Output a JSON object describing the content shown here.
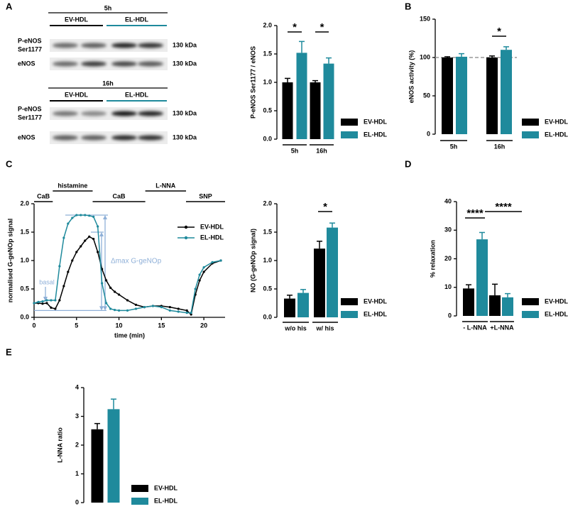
{
  "panel_labels": [
    "A",
    "B",
    "C",
    "D",
    "E"
  ],
  "blots": {
    "group_colors": [
      "#000000",
      "#1f8a9c"
    ],
    "items": [
      {
        "time": "5h",
        "groups": [
          "EV-HDL",
          "EL-HDL"
        ],
        "rows": [
          {
            "label": [
              "P-eNOS",
              "Ser1177"
            ],
            "size": "130 kDa"
          },
          {
            "label": [
              "eNOS"
            ],
            "size": "130 kDa"
          }
        ]
      },
      {
        "time": "16h",
        "groups": [
          "EV-HDL",
          "EL-HDL"
        ],
        "rows": [
          {
            "label": [
              "P-eNOS",
              "Ser1177"
            ],
            "size": "130 kDa"
          },
          {
            "label": [
              "eNOS"
            ],
            "size": "130 kDa"
          }
        ]
      }
    ]
  },
  "chart_data": [
    {
      "type": "bar",
      "ylabel": "P-eNOS Ser1177 / eNOS",
      "categories": [
        "5h",
        "16h"
      ],
      "series": [
        {
          "name": "EV-HDL",
          "color": "#000000",
          "values": [
            1.0,
            1.0
          ],
          "errors": [
            0.07,
            0.03
          ]
        },
        {
          "name": "EL-HDL",
          "color": "#1f8a9c",
          "values": [
            1.52,
            1.33
          ],
          "errors": [
            0.2,
            0.1
          ]
        }
      ],
      "ylim": [
        0,
        2
      ],
      "yticks": [
        {
          "value": 0,
          "label": "0.0"
        },
        {
          "value": 0.5,
          "label": "0.5"
        },
        {
          "value": 1,
          "label": "1.0"
        },
        {
          "value": 1.5,
          "label": "1.5"
        },
        {
          "value": 2,
          "label": "2.0"
        }
      ],
      "annotations": [
        "*",
        "*"
      ],
      "legend": "right"
    },
    {
      "type": "bar",
      "ylabel": "eNOS activity (%)",
      "categories": [
        "5h",
        "16h"
      ],
      "series": [
        {
          "name": "EV-HDL",
          "color": "#000000",
          "values": [
            100,
            100
          ],
          "errors": [
            1,
            2
          ]
        },
        {
          "name": "EL-HDL",
          "color": "#1f8a9c",
          "values": [
            101,
            110
          ],
          "errors": [
            4,
            4
          ]
        }
      ],
      "ylim": [
        0,
        150
      ],
      "yticks": [
        0,
        50,
        100,
        150
      ],
      "reference_line": 100,
      "annotations": [
        "*"
      ],
      "legend": "right"
    },
    {
      "type": "line",
      "xlabel": "time (min)",
      "ylabel": "normalised G-geNOp signal",
      "x": [
        0,
        0.5,
        1,
        1.5,
        2,
        2.5,
        3,
        3.5,
        4,
        4.5,
        5,
        5.5,
        6,
        6.5,
        7,
        7.5,
        8,
        8.5,
        9,
        9.5,
        10,
        11,
        12,
        13,
        14,
        15,
        16,
        17,
        18,
        18.5,
        19,
        19.5,
        20,
        21,
        22
      ],
      "series": [
        {
          "name": "EV-HDL",
          "color": "#000000",
          "values": [
            0.25,
            0.25,
            0.24,
            0.25,
            0.17,
            0.15,
            0.3,
            0.55,
            0.8,
            1.0,
            1.15,
            1.25,
            1.35,
            1.42,
            1.38,
            1.15,
            0.85,
            0.65,
            0.52,
            0.45,
            0.4,
            0.3,
            0.22,
            0.18,
            0.2,
            0.2,
            0.18,
            0.15,
            0.12,
            0.05,
            0.4,
            0.65,
            0.8,
            0.95,
            1.0
          ]
        },
        {
          "name": "EL-HDL",
          "color": "#1f8a9c",
          "values": [
            0.25,
            0.27,
            0.28,
            0.3,
            0.3,
            0.3,
            0.9,
            1.4,
            1.65,
            1.75,
            1.8,
            1.8,
            1.8,
            1.79,
            1.77,
            1.6,
            0.6,
            0.25,
            0.15,
            0.13,
            0.12,
            0.12,
            0.15,
            0.18,
            0.2,
            0.18,
            0.12,
            0.1,
            0.08,
            0.08,
            0.5,
            0.75,
            0.88,
            0.97,
            1.0
          ]
        }
      ],
      "xlim": [
        0,
        22.5
      ],
      "xticks": [
        0,
        5,
        10,
        15,
        20
      ],
      "ylim": [
        0,
        2
      ],
      "yticks": [
        {
          "value": 0,
          "label": "0.0"
        },
        {
          "value": 0.5,
          "label": "0.5"
        },
        {
          "value": 1,
          "label": "1.0"
        },
        {
          "value": 1.5,
          "label": "1.5"
        },
        {
          "value": 2,
          "label": "2.0"
        }
      ],
      "phases": [
        {
          "label": "CaB",
          "start": 0,
          "end": 2.2
        },
        {
          "label": "histamine",
          "start": 2.2,
          "end": 6.9
        },
        {
          "label": "CaB",
          "start": 6.9,
          "end": 13.1
        },
        {
          "label": "L-NNA",
          "start": 13.1,
          "end": 17.9
        },
        {
          "label": "SNP",
          "start": 17.9,
          "end": 22.5
        }
      ],
      "annotations": [
        "basal",
        "Δmax G-geNOp"
      ],
      "legend": "right"
    },
    {
      "type": "bar",
      "ylabel": "NO (G-geNOp signal)",
      "categories": [
        "w/o his",
        "w/ his"
      ],
      "series": [
        {
          "name": "EV-HDL",
          "color": "#000000",
          "values": [
            0.33,
            1.21
          ],
          "errors": [
            0.06,
            0.13
          ]
        },
        {
          "name": "EL-HDL",
          "color": "#1f8a9c",
          "values": [
            0.43,
            1.58
          ],
          "errors": [
            0.06,
            0.08
          ]
        }
      ],
      "ylim": [
        0,
        2
      ],
      "yticks": [
        {
          "value": 0,
          "label": "0.0"
        },
        {
          "value": 0.5,
          "label": "0.5"
        },
        {
          "value": 1,
          "label": "1.0"
        },
        {
          "value": 1.5,
          "label": "1.5"
        },
        {
          "value": 2,
          "label": "2.0"
        }
      ],
      "annotations": [
        "*"
      ],
      "legend": "right"
    },
    {
      "type": "bar",
      "ylabel": "% relaxation",
      "categories": [
        "- L-NNA",
        "+L-NNA"
      ],
      "series": [
        {
          "name": "EV-HDL",
          "color": "#000000",
          "values": [
            9.6,
            7.2
          ],
          "errors": [
            1.3,
            3.9
          ]
        },
        {
          "name": "EL-HDL",
          "color": "#1f8a9c",
          "values": [
            26.8,
            6.5
          ],
          "errors": [
            2.4,
            1.3
          ]
        }
      ],
      "ylim": [
        0,
        40
      ],
      "yticks": [
        0,
        10,
        20,
        30,
        40
      ],
      "annotations": [
        "****",
        "****"
      ],
      "legend": "right"
    },
    {
      "type": "bar",
      "ylabel": "L-NNA ratio",
      "categories": [
        null
      ],
      "series": [
        {
          "name": "EV-HDL",
          "color": "#000000",
          "values": [
            2.55
          ],
          "errors": [
            0.2
          ]
        },
        {
          "name": "EL-HDL",
          "color": "#1f8a9c",
          "values": [
            3.25
          ],
          "errors": [
            0.35
          ]
        }
      ],
      "ylim": [
        0,
        4
      ],
      "yticks": [
        0,
        1,
        2,
        3,
        4
      ],
      "legend": "right"
    }
  ]
}
